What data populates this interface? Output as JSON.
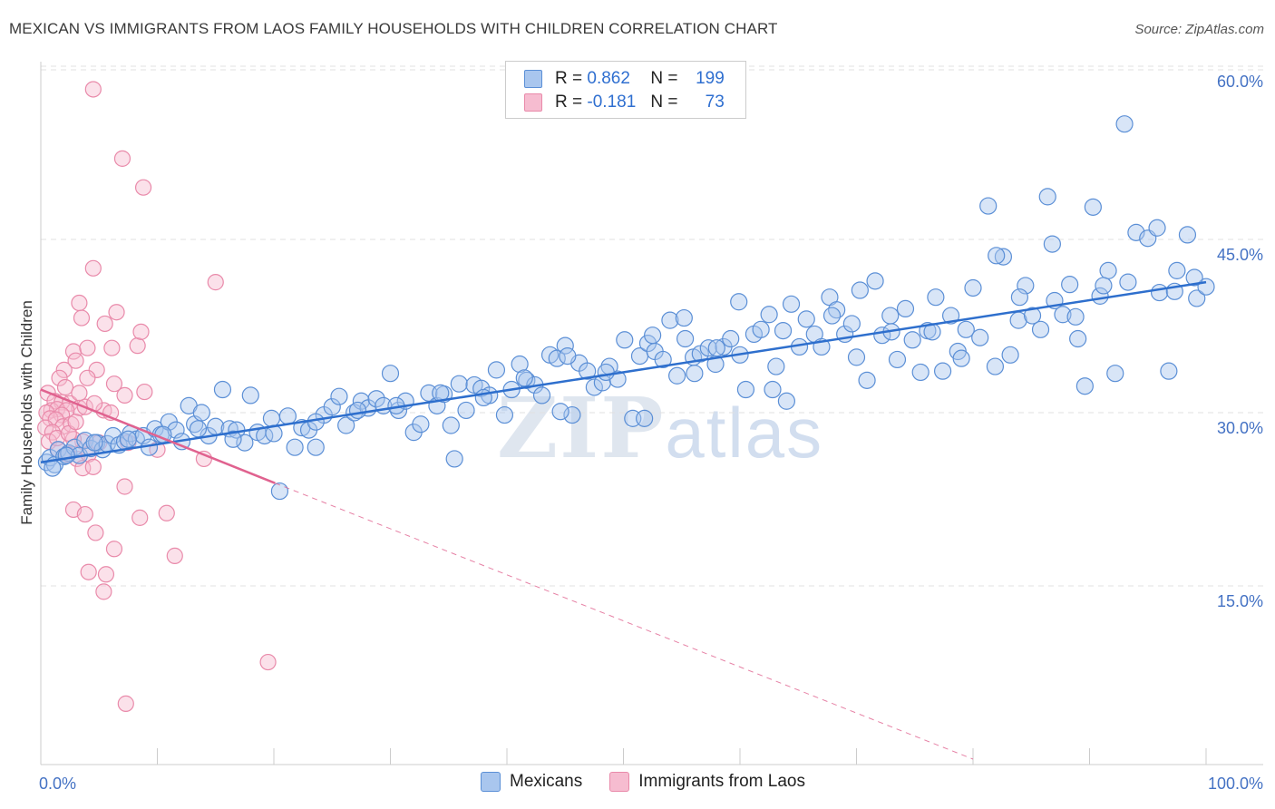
{
  "header": {
    "title": "MEXICAN VS IMMIGRANTS FROM LAOS FAMILY HOUSEHOLDS WITH CHILDREN CORRELATION CHART",
    "source": "Source: ZipAtlas.com"
  },
  "watermark": {
    "zip": "ZIP",
    "atlas": "atlas"
  },
  "legend": {
    "rows": [
      {
        "r_label": "R =",
        "r_value": "0.862",
        "n_label": "N =",
        "n_value": "199"
      },
      {
        "r_label": "R =",
        "r_value": "-0.181",
        "n_label": "N =",
        "n_value": "73"
      }
    ]
  },
  "bottom_legend": {
    "series1": "Mexicans",
    "series2": "Immigrants from Laos"
  },
  "colors": {
    "mexicans_fill": "#a9c6ee",
    "mexicans_stroke": "#5b8fd6",
    "mexicans_line": "#2e6fcd",
    "laos_fill": "#f6bcd0",
    "laos_stroke": "#e98aaa",
    "laos_line": "#e0628f",
    "tick_text": "#4472c4",
    "grid": "#e0e0e0"
  },
  "chart_data": {
    "type": "scatter",
    "title": "MEXICAN VS IMMIGRANTS FROM LAOS FAMILY HOUSEHOLDS WITH CHILDREN CORRELATION CHART",
    "xlabel": "",
    "ylabel": "Family Households with Children",
    "xlim": [
      0,
      100
    ],
    "ylim": [
      0,
      60.0
    ],
    "x_tick_labels": [
      "0.0%",
      "100.0%"
    ],
    "y_ticks": [
      15,
      30,
      45,
      60
    ],
    "y_tick_labels": [
      "15.0%",
      "30.0%",
      "45.0%",
      "60.0%"
    ],
    "grid": true,
    "legend_position": "top-center",
    "series": [
      {
        "name": "Mexicans",
        "R": 0.862,
        "N": 199,
        "trend": {
          "x": [
            0,
            100
          ],
          "y": [
            25.7,
            41.3
          ],
          "style": "solid"
        },
        "points": [
          [
            0.5,
            25.7
          ],
          [
            0.8,
            26.1
          ],
          [
            1.2,
            25.5
          ],
          [
            1.5,
            26.8
          ],
          [
            2.0,
            26.2
          ],
          [
            2.4,
            26.5
          ],
          [
            2.9,
            27.0
          ],
          [
            3.3,
            26.3
          ],
          [
            3.8,
            27.6
          ],
          [
            4.3,
            26.9
          ],
          [
            4.8,
            27.4
          ],
          [
            5.3,
            26.8
          ],
          [
            5.7,
            27.3
          ],
          [
            6.2,
            28.0
          ],
          [
            6.7,
            27.2
          ],
          [
            7.2,
            27.5
          ],
          [
            7.7,
            28.2
          ],
          [
            8.2,
            27.7
          ],
          [
            8.8,
            28.0
          ],
          [
            9.3,
            27.0
          ],
          [
            9.8,
            28.6
          ],
          [
            10.3,
            28.1
          ],
          [
            11.0,
            29.2
          ],
          [
            11.6,
            28.5
          ],
          [
            12.1,
            27.5
          ],
          [
            12.7,
            30.6
          ],
          [
            13.2,
            29.0
          ],
          [
            13.8,
            30.0
          ],
          [
            14.4,
            28.0
          ],
          [
            15.0,
            28.8
          ],
          [
            15.6,
            32.0
          ],
          [
            16.2,
            28.6
          ],
          [
            16.8,
            28.5
          ],
          [
            17.5,
            27.4
          ],
          [
            18.0,
            31.5
          ],
          [
            18.6,
            28.3
          ],
          [
            19.2,
            28.0
          ],
          [
            19.8,
            29.5
          ],
          [
            20.5,
            23.2
          ],
          [
            21.2,
            29.7
          ],
          [
            21.8,
            27.0
          ],
          [
            22.4,
            28.7
          ],
          [
            23.0,
            28.5
          ],
          [
            23.6,
            27.0
          ],
          [
            24.3,
            29.8
          ],
          [
            25.0,
            30.5
          ],
          [
            25.6,
            31.4
          ],
          [
            26.2,
            28.9
          ],
          [
            26.9,
            30.0
          ],
          [
            27.5,
            31.0
          ],
          [
            28.1,
            30.4
          ],
          [
            28.8,
            31.2
          ],
          [
            29.4,
            30.6
          ],
          [
            30.0,
            33.4
          ],
          [
            30.7,
            30.2
          ],
          [
            31.3,
            31.0
          ],
          [
            32.0,
            28.3
          ],
          [
            32.6,
            29.0
          ],
          [
            33.3,
            31.7
          ],
          [
            34.0,
            30.6
          ],
          [
            34.6,
            31.6
          ],
          [
            35.2,
            28.9
          ],
          [
            35.9,
            32.5
          ],
          [
            36.5,
            30.2
          ],
          [
            37.2,
            32.4
          ],
          [
            37.8,
            32.1
          ],
          [
            38.5,
            31.5
          ],
          [
            39.1,
            33.7
          ],
          [
            39.8,
            29.8
          ],
          [
            40.4,
            32.0
          ],
          [
            41.1,
            34.2
          ],
          [
            41.7,
            32.8
          ],
          [
            42.4,
            32.4
          ],
          [
            43.0,
            31.5
          ],
          [
            43.7,
            35.0
          ],
          [
            44.3,
            34.7
          ],
          [
            45.0,
            35.8
          ],
          [
            45.6,
            29.8
          ],
          [
            46.2,
            34.3
          ],
          [
            46.9,
            33.6
          ],
          [
            47.5,
            32.2
          ],
          [
            48.2,
            32.6
          ],
          [
            48.8,
            34.0
          ],
          [
            49.5,
            32.9
          ],
          [
            50.1,
            36.3
          ],
          [
            50.8,
            29.5
          ],
          [
            51.4,
            34.9
          ],
          [
            52.1,
            36.0
          ],
          [
            52.7,
            35.3
          ],
          [
            53.4,
            34.6
          ],
          [
            54.0,
            38.0
          ],
          [
            54.6,
            33.2
          ],
          [
            55.3,
            36.4
          ],
          [
            56.0,
            34.8
          ],
          [
            56.6,
            35.1
          ],
          [
            57.3,
            35.6
          ],
          [
            57.9,
            34.2
          ],
          [
            58.6,
            35.7
          ],
          [
            59.2,
            36.4
          ],
          [
            59.9,
            39.6
          ],
          [
            60.5,
            32.0
          ],
          [
            61.2,
            36.8
          ],
          [
            61.8,
            37.2
          ],
          [
            62.5,
            38.5
          ],
          [
            63.1,
            34.0
          ],
          [
            63.7,
            37.1
          ],
          [
            64.4,
            39.4
          ],
          [
            65.1,
            35.7
          ],
          [
            65.7,
            38.1
          ],
          [
            66.4,
            36.8
          ],
          [
            67.0,
            35.7
          ],
          [
            67.7,
            40.0
          ],
          [
            68.3,
            38.9
          ],
          [
            69.0,
            36.8
          ],
          [
            69.6,
            37.7
          ],
          [
            70.3,
            40.6
          ],
          [
            70.9,
            32.8
          ],
          [
            71.6,
            41.4
          ],
          [
            72.2,
            36.7
          ],
          [
            72.9,
            38.4
          ],
          [
            73.5,
            34.6
          ],
          [
            74.2,
            39.0
          ],
          [
            74.8,
            36.3
          ],
          [
            75.5,
            33.5
          ],
          [
            76.1,
            37.1
          ],
          [
            76.8,
            40.0
          ],
          [
            77.4,
            33.6
          ],
          [
            78.1,
            38.4
          ],
          [
            78.7,
            35.3
          ],
          [
            79.4,
            37.2
          ],
          [
            80.0,
            40.8
          ],
          [
            80.6,
            36.5
          ],
          [
            81.3,
            47.9
          ],
          [
            81.9,
            34.0
          ],
          [
            82.6,
            43.5
          ],
          [
            83.2,
            35.0
          ],
          [
            83.9,
            38.0
          ],
          [
            84.5,
            41.0
          ],
          [
            85.1,
            38.4
          ],
          [
            85.8,
            37.2
          ],
          [
            86.4,
            48.7
          ],
          [
            87.0,
            39.7
          ],
          [
            87.7,
            38.5
          ],
          [
            88.3,
            41.1
          ],
          [
            89.0,
            36.4
          ],
          [
            89.6,
            32.3
          ],
          [
            90.3,
            47.8
          ],
          [
            90.9,
            40.1
          ],
          [
            91.6,
            42.3
          ],
          [
            92.2,
            33.4
          ],
          [
            93.0,
            55.0
          ],
          [
            94.0,
            45.6
          ],
          [
            95.0,
            45.1
          ],
          [
            96.0,
            40.4
          ],
          [
            96.8,
            33.6
          ],
          [
            97.5,
            42.3
          ],
          [
            98.4,
            45.4
          ],
          [
            99.2,
            39.9
          ],
          [
            100.0,
            40.9
          ],
          [
            35.5,
            26.0
          ],
          [
            44.6,
            30.1
          ],
          [
            51.8,
            29.5
          ],
          [
            56.1,
            33.4
          ],
          [
            62.8,
            32.0
          ],
          [
            64.0,
            31.0
          ],
          [
            70.0,
            34.8
          ],
          [
            76.5,
            37.0
          ],
          [
            82.0,
            43.6
          ],
          [
            84.0,
            40.0
          ],
          [
            86.8,
            44.6
          ],
          [
            88.8,
            38.3
          ],
          [
            91.2,
            41.0
          ],
          [
            93.3,
            41.3
          ],
          [
            95.8,
            46.0
          ],
          [
            97.3,
            40.5
          ],
          [
            99.0,
            41.7
          ],
          [
            60.0,
            35.0
          ],
          [
            58.0,
            35.6
          ],
          [
            52.5,
            36.7
          ],
          [
            48.5,
            33.5
          ],
          [
            45.2,
            34.9
          ],
          [
            41.5,
            33.0
          ],
          [
            38.0,
            31.3
          ],
          [
            34.3,
            31.7
          ],
          [
            30.5,
            30.6
          ],
          [
            27.2,
            30.2
          ],
          [
            23.6,
            29.2
          ],
          [
            20.0,
            28.2
          ],
          [
            16.5,
            27.7
          ],
          [
            13.5,
            28.6
          ],
          [
            10.5,
            28.1
          ],
          [
            7.5,
            27.7
          ],
          [
            4.6,
            27.4
          ],
          [
            2.2,
            26.3
          ],
          [
            1.0,
            25.2
          ],
          [
            55.2,
            38.2
          ],
          [
            67.9,
            38.4
          ],
          [
            73.0,
            37.0
          ],
          [
            79.0,
            34.7
          ]
        ]
      },
      {
        "name": "Immigrants from Laos",
        "R": -0.181,
        "N": 73,
        "trend_solid": {
          "x": [
            0,
            20.1
          ],
          "y": [
            32.0,
            23.9
          ]
        },
        "trend_dashed": {
          "x": [
            20.1,
            80
          ],
          "y": [
            23.9,
            0
          ]
        },
        "points": [
          [
            4.5,
            58.0
          ],
          [
            7.0,
            52.0
          ],
          [
            8.8,
            49.5
          ],
          [
            15.0,
            41.3
          ],
          [
            4.5,
            42.5
          ],
          [
            3.3,
            39.5
          ],
          [
            3.5,
            38.2
          ],
          [
            5.5,
            37.7
          ],
          [
            6.5,
            38.7
          ],
          [
            2.8,
            35.3
          ],
          [
            4.0,
            35.6
          ],
          [
            6.1,
            35.6
          ],
          [
            8.3,
            35.8
          ],
          [
            8.6,
            37.0
          ],
          [
            3.0,
            34.5
          ],
          [
            4.8,
            33.7
          ],
          [
            6.3,
            32.5
          ],
          [
            2.0,
            33.7
          ],
          [
            1.6,
            33.0
          ],
          [
            0.6,
            31.7
          ],
          [
            1.2,
            31.0
          ],
          [
            1.8,
            30.9
          ],
          [
            2.5,
            30.8
          ],
          [
            3.3,
            30.4
          ],
          [
            0.9,
            30.2
          ],
          [
            1.4,
            30.3
          ],
          [
            2.2,
            30.2
          ],
          [
            0.5,
            30.0
          ],
          [
            1.8,
            29.8
          ],
          [
            0.8,
            29.5
          ],
          [
            1.3,
            29.4
          ],
          [
            1.9,
            28.8
          ],
          [
            2.6,
            29.0
          ],
          [
            0.4,
            28.7
          ],
          [
            3.8,
            30.5
          ],
          [
            5.4,
            30.2
          ],
          [
            1.0,
            28.3
          ],
          [
            3.6,
            27.5
          ],
          [
            5.0,
            27.4
          ],
          [
            2.8,
            27.7
          ],
          [
            0.7,
            27.5
          ],
          [
            1.5,
            26.8
          ],
          [
            2.3,
            26.4
          ],
          [
            3.1,
            26.0
          ],
          [
            4.1,
            26.4
          ],
          [
            7.5,
            27.4
          ],
          [
            10.0,
            26.8
          ],
          [
            14.0,
            26.0
          ],
          [
            3.6,
            25.2
          ],
          [
            4.5,
            25.3
          ],
          [
            7.2,
            23.6
          ],
          [
            2.8,
            21.6
          ],
          [
            3.8,
            21.2
          ],
          [
            8.5,
            20.9
          ],
          [
            10.8,
            21.3
          ],
          [
            4.7,
            19.6
          ],
          [
            6.3,
            18.2
          ],
          [
            11.5,
            17.6
          ],
          [
            4.1,
            16.2
          ],
          [
            5.6,
            16.0
          ],
          [
            5.4,
            14.5
          ],
          [
            19.5,
            8.4
          ],
          [
            7.3,
            4.8
          ],
          [
            2.1,
            32.2
          ],
          [
            3.3,
            31.7
          ],
          [
            4.0,
            33.0
          ],
          [
            7.2,
            31.5
          ],
          [
            8.9,
            31.8
          ],
          [
            1.4,
            27.8
          ],
          [
            2.4,
            28.2
          ],
          [
            4.6,
            30.8
          ],
          [
            6.0,
            30.0
          ],
          [
            3.0,
            29.2
          ]
        ]
      }
    ]
  }
}
